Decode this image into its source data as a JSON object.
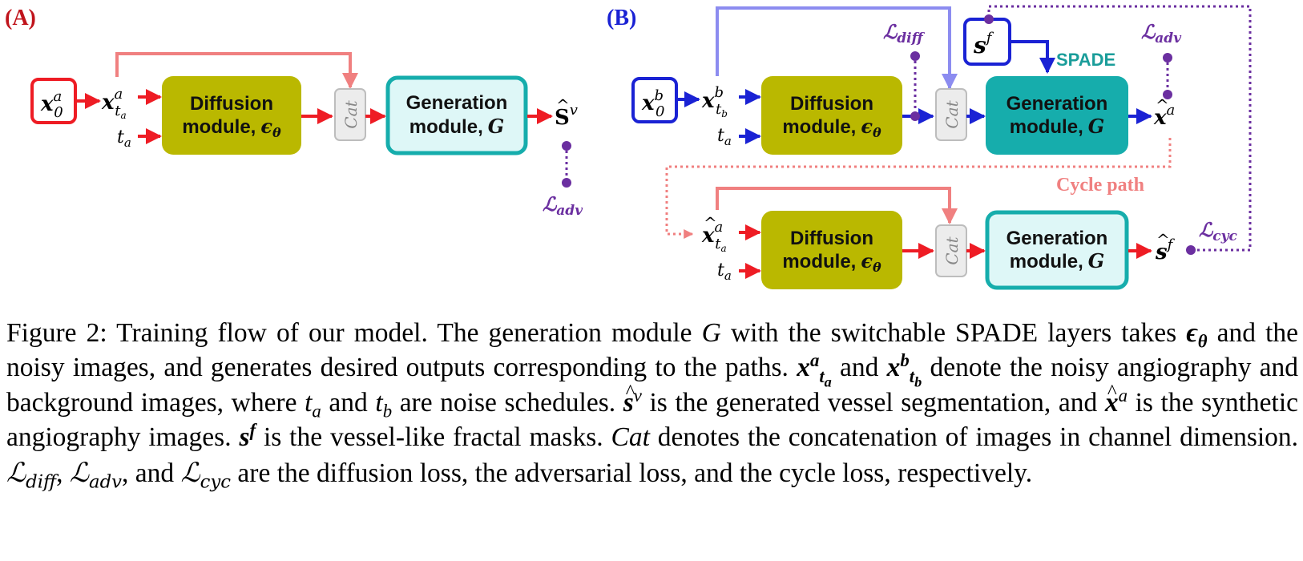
{
  "panels": {
    "a_label": "(A)",
    "b_label": "(B)"
  },
  "blocks": {
    "diffusion_title": "Diffusion",
    "diffusion_sub": "module,",
    "generation_title": "Generation",
    "generation_sub": "module,",
    "cat_label": "Cat",
    "spade_label": "SPADE",
    "cycle_path_label": "Cycle path"
  },
  "caption": {
    "figure_label": "Figure 2:",
    "sentence_1": "Training flow of our model. The generation module",
    "sentence_1b": "with the switchable SPADE layers takes",
    "sentence_1c": "and the noisy images, and generates desired outputs corresponding to the paths.",
    "and_1": "and",
    "sentence_2": "denote the noisy angiography and background images, where",
    "and_2": "and",
    "sentence_2b": "are noise schedules.",
    "is_1": "is the generated vessel segmentation, and",
    "sentence_3": "is the synthetic angiography images.",
    "sentence_4": "is the vessel-like fractal masks.",
    "cat_word": "Cat",
    "sentence_5": "denotes the concatenation of images in channel dimension.",
    "sentence_6": "are the diffusion loss, the adversarial loss, and the cycle loss, respectively.",
    "and_3": ", and"
  },
  "colors": {
    "red": "#ee1c24",
    "pink": "#f08080",
    "blue": "#1a22d4",
    "light_blue": "#8c8cf0",
    "purple": "#6b2fa0",
    "olive": "#bab800",
    "teal": "#16adac",
    "teal_light_fill": "#def7f7",
    "cat_fill": "#ececec",
    "teal_text": "#1a9d9a"
  }
}
